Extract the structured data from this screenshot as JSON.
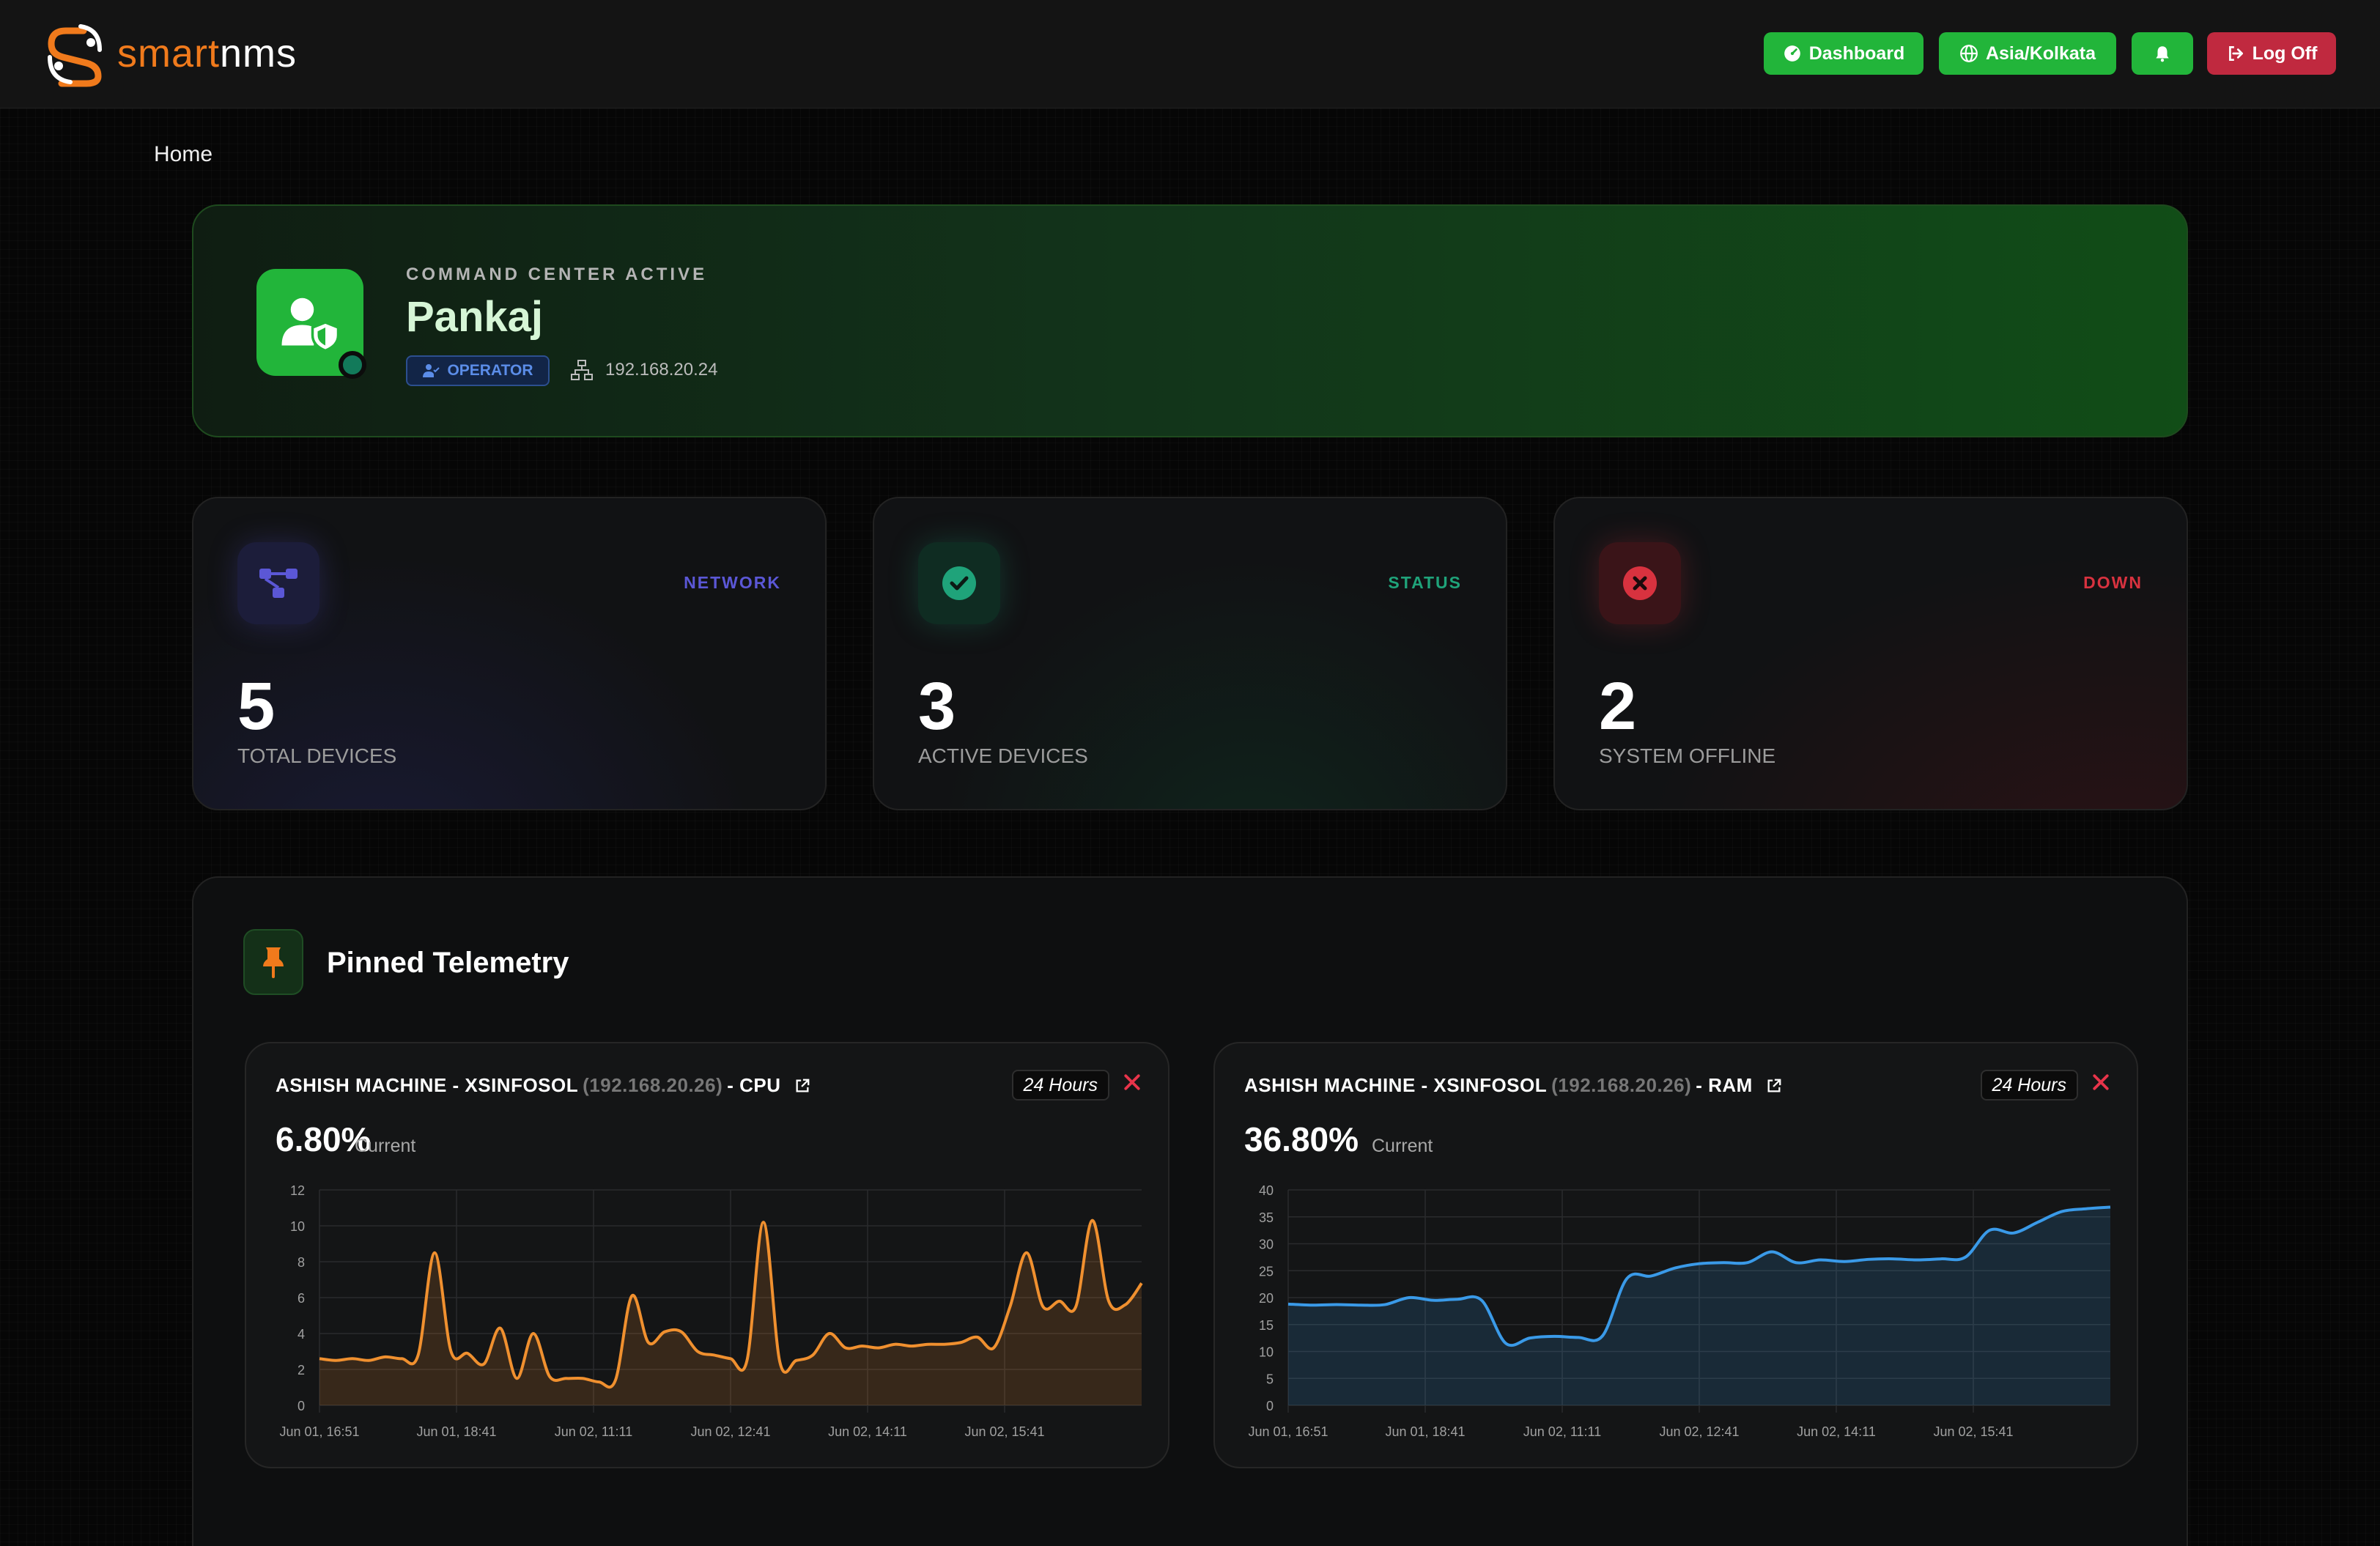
{
  "header": {
    "logo_smart": "smart",
    "logo_nms": "nms",
    "dashboard_label": "Dashboard",
    "timezone_label": "Asia/Kolkata",
    "logoff_label": "Log Off"
  },
  "breadcrumb": {
    "home": "Home"
  },
  "hero": {
    "kicker": "COMMAND CENTER ACTIVE",
    "name": "Pankaj",
    "role": "OPERATOR",
    "ip": "192.168.20.24"
  },
  "stats": [
    {
      "tag": "NETWORK",
      "value": "5",
      "label": "TOTAL DEVICES",
      "color": "#5b57d6"
    },
    {
      "tag": "STATUS",
      "value": "3",
      "label": "ACTIVE DEVICES",
      "color": "#1fa37a"
    },
    {
      "tag": "DOWN",
      "value": "2",
      "label": "SYSTEM OFFLINE",
      "color": "#d8323f"
    }
  ],
  "telemetry": {
    "title": "Pinned Telemetry",
    "charts": [
      {
        "name": "ASHISH MACHINE - XSINFOSOL",
        "ip": "(192.168.20.26)",
        "metric": "- CPU",
        "range": "24 Hours",
        "current": "6.80%",
        "current_label": "Current"
      },
      {
        "name": "ASHISH MACHINE - XSINFOSOL",
        "ip": "(192.168.20.26)",
        "metric": "- RAM",
        "range": "24 Hours",
        "current": "36.80%",
        "current_label": "Current"
      }
    ]
  },
  "colors": {
    "accent_green": "#22b53a",
    "danger_red": "#c0293f",
    "cpu_line": "#f0902f",
    "ram_line": "#3a9ae8"
  },
  "chart_data": [
    {
      "type": "area",
      "x_ticks": [
        "Jun 01, 16:51",
        "Jun 01, 18:41",
        "Jun 02, 11:11",
        "Jun 02, 12:41",
        "Jun 02, 14:11",
        "Jun 02, 15:41"
      ],
      "y_ticks": [
        "0",
        "2",
        "4",
        "6",
        "8",
        "10",
        "12"
      ],
      "ylim": [
        0,
        12
      ],
      "grid": true,
      "series": [
        {
          "color": "#f0902f",
          "values": [
            2.6,
            2.5,
            2.6,
            2.5,
            2.7,
            2.6,
            2.8,
            8.5,
            3.0,
            2.9,
            2.3,
            4.3,
            1.5,
            4.0,
            1.6,
            1.5,
            1.5,
            1.3,
            1.4,
            6.1,
            3.5,
            4.1,
            4.1,
            3.0,
            2.8,
            2.6,
            2.5,
            10.2,
            2.4,
            2.5,
            2.8,
            4.0,
            3.2,
            3.3,
            3.2,
            3.4,
            3.3,
            3.4,
            3.4,
            3.5,
            3.8,
            3.2,
            5.5,
            8.5,
            5.5,
            5.8,
            5.5,
            10.3,
            5.8,
            5.6,
            6.8
          ]
        }
      ]
    },
    {
      "type": "area",
      "x_ticks": [
        "Jun 01, 16:51",
        "Jun 01, 18:41",
        "Jun 02, 11:11",
        "Jun 02, 12:41",
        "Jun 02, 14:11",
        "Jun 02, 15:41"
      ],
      "y_ticks": [
        "0",
        "5",
        "10",
        "15",
        "20",
        "25",
        "30",
        "35",
        "40"
      ],
      "ylim": [
        0,
        40
      ],
      "grid": true,
      "series": [
        {
          "color": "#3a9ae8",
          "values": [
            18.8,
            18.6,
            18.7,
            18.6,
            18.7,
            20.0,
            19.5,
            19.7,
            19.5,
            11.5,
            12.5,
            12.8,
            12.6,
            12.9,
            23.5,
            24.0,
            25.5,
            26.3,
            26.5,
            26.5,
            28.5,
            26.5,
            27.0,
            26.7,
            27.1,
            27.2,
            27.0,
            27.2,
            27.5,
            32.5,
            32.0,
            34.0,
            36.0,
            36.5,
            36.8
          ]
        }
      ]
    }
  ]
}
